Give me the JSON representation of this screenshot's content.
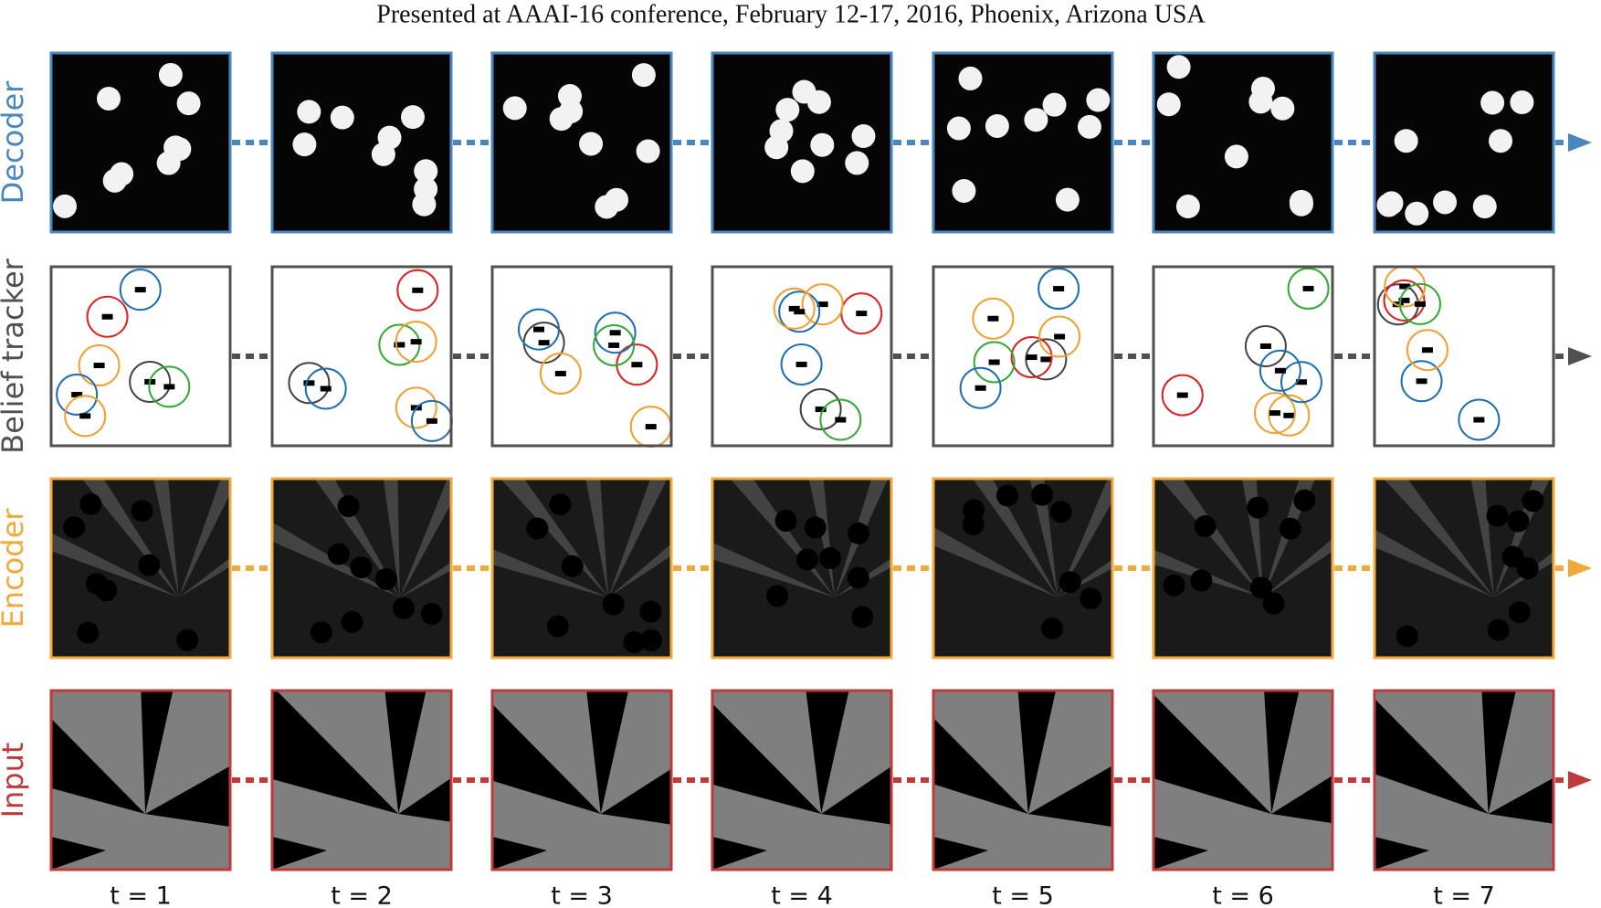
{
  "header": {
    "title": "Presented at AAAI-16 conference, February 12-17, 2016, Phoenix, Arizona USA"
  },
  "rows": [
    {
      "label": "Decoder",
      "color": "#4a86c0"
    },
    {
      "label": "Belief tracker",
      "color": "#505050"
    },
    {
      "label": "Encoder",
      "color": "#f2a93b"
    },
    {
      "label": "Input",
      "color": "#c0393b"
    }
  ],
  "columns": [
    {
      "label": "t = 1"
    },
    {
      "label": "t = 2"
    },
    {
      "label": "t = 3"
    },
    {
      "label": "t = 4"
    },
    {
      "label": "t = 5"
    },
    {
      "label": "t = 6"
    },
    {
      "label": "t = 7"
    }
  ]
}
